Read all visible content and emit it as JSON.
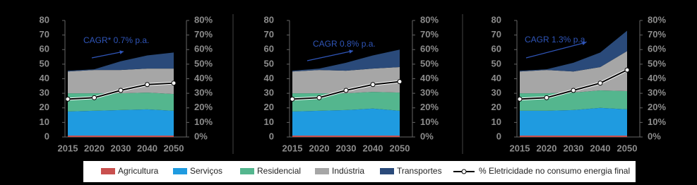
{
  "chart_data": [
    {
      "type": "area",
      "annotation": "CAGR* 0.7% p.a.",
      "categories": [
        "2015",
        "2020",
        "2030",
        "2040",
        "2050"
      ],
      "series": [
        {
          "name": "Agricultura",
          "color": "#c9504e",
          "values": [
            1,
            1,
            1,
            1,
            1
          ]
        },
        {
          "name": "Serviços",
          "color": "#1f9be0",
          "values": [
            16.5,
            17,
            17.5,
            18,
            17
          ]
        },
        {
          "name": "Residencial",
          "color": "#54b68e",
          "values": [
            12.5,
            12,
            11.5,
            11.5,
            11.5
          ]
        },
        {
          "name": "Indústria",
          "color": "#a6a6a6",
          "values": [
            15,
            16,
            16,
            16.5,
            17.5
          ]
        },
        {
          "name": "Transportes",
          "color": "#2a4a7a",
          "values": [
            0.5,
            0.5,
            6,
            9,
            11
          ]
        },
        {
          "name": "% Eletricidade no consumo energia final",
          "color": "#000000",
          "axis": "y2",
          "values": [
            26,
            27,
            32,
            36,
            37
          ]
        }
      ],
      "ylim": [
        0,
        80
      ],
      "yticks": [
        0,
        10,
        20,
        30,
        40,
        50,
        60,
        70,
        80
      ],
      "y2lim": [
        0,
        80
      ],
      "y2ticks": [
        {
          "value": 0,
          "label": "0%"
        },
        {
          "value": 10,
          "label": "10%"
        },
        {
          "value": 20,
          "label": "20%"
        },
        {
          "value": 30,
          "label": "30%"
        },
        {
          "value": 40,
          "label": "40%"
        },
        {
          "value": 50,
          "label": "50%"
        },
        {
          "value": 60,
          "label": "60%"
        },
        {
          "value": 70,
          "label": "70%"
        },
        {
          "value": 80,
          "label": "80%"
        }
      ]
    },
    {
      "type": "area",
      "annotation": "CAGR 0.8% p.a.",
      "categories": [
        "2015",
        "2020",
        "2030",
        "2040",
        "2050"
      ],
      "series": [
        {
          "name": "Agricultura",
          "color": "#c9504e",
          "values": [
            1,
            1,
            1,
            1,
            1
          ]
        },
        {
          "name": "Serviços",
          "color": "#1f9be0",
          "values": [
            16.5,
            17,
            17.5,
            18.5,
            17
          ]
        },
        {
          "name": "Residencial",
          "color": "#54b68e",
          "values": [
            12.5,
            12,
            11.5,
            11.5,
            12.5
          ]
        },
        {
          "name": "Indústria",
          "color": "#a6a6a6",
          "values": [
            15,
            16,
            15.5,
            16,
            17.5
          ]
        },
        {
          "name": "Transportes",
          "color": "#2a4a7a",
          "values": [
            0.5,
            1,
            5.5,
            9,
            12
          ]
        },
        {
          "name": "% Eletricidade no consumo energia final",
          "color": "#000000",
          "axis": "y2",
          "values": [
            26,
            27,
            32,
            36,
            38
          ]
        }
      ],
      "ylim": [
        0,
        80
      ],
      "yticks": [
        0,
        10,
        20,
        30,
        40,
        50,
        60,
        70,
        80
      ],
      "y2lim": [
        0,
        80
      ],
      "y2ticks": [
        {
          "value": 0,
          "label": "0%"
        },
        {
          "value": 10,
          "label": "10%"
        },
        {
          "value": 20,
          "label": "20%"
        },
        {
          "value": 30,
          "label": "30%"
        },
        {
          "value": 40,
          "label": "40%"
        },
        {
          "value": 50,
          "label": "50%"
        },
        {
          "value": 60,
          "label": "60%"
        },
        {
          "value": 70,
          "label": "70%"
        },
        {
          "value": 80,
          "label": "80%"
        }
      ]
    },
    {
      "type": "area",
      "annotation": "CAGR 1.3% p.a.",
      "categories": [
        "2015",
        "2020",
        "2030",
        "2040",
        "2050"
      ],
      "series": [
        {
          "name": "Agricultura",
          "color": "#c9504e",
          "values": [
            1,
            1,
            1,
            1,
            1
          ]
        },
        {
          "name": "Serviços",
          "color": "#1f9be0",
          "values": [
            17,
            17,
            17.5,
            19,
            18
          ]
        },
        {
          "name": "Residencial",
          "color": "#54b68e",
          "values": [
            12,
            12,
            12,
            12,
            12.5
          ]
        },
        {
          "name": "Indústria",
          "color": "#a6a6a6",
          "values": [
            15,
            16,
            14.5,
            16,
            27.5
          ]
        },
        {
          "name": "Transportes",
          "color": "#2a4a7a",
          "values": [
            0.5,
            0.5,
            6,
            10,
            14
          ]
        },
        {
          "name": "% Eletricidade no consumo energia final",
          "color": "#000000",
          "axis": "y2",
          "values": [
            26,
            27,
            32,
            37,
            46
          ]
        }
      ],
      "ylim": [
        0,
        80
      ],
      "yticks": [
        0,
        10,
        20,
        30,
        40,
        50,
        60,
        70,
        80
      ],
      "y2lim": [
        0,
        80
      ],
      "y2ticks": [
        {
          "value": 0,
          "label": "0%"
        },
        {
          "value": 10,
          "label": "10%"
        },
        {
          "value": 20,
          "label": "20%"
        },
        {
          "value": 30,
          "label": "30%"
        },
        {
          "value": 40,
          "label": "40%"
        },
        {
          "value": 50,
          "label": "50%"
        },
        {
          "value": 60,
          "label": "60%"
        },
        {
          "value": 70,
          "label": "70%"
        },
        {
          "value": 80,
          "label": "80%"
        }
      ]
    }
  ]
}
